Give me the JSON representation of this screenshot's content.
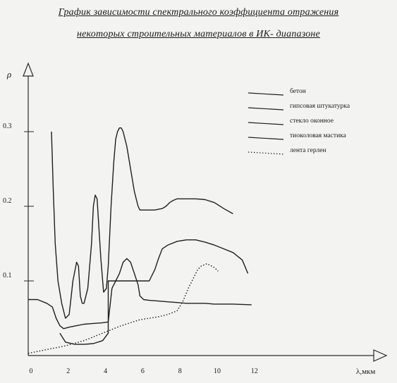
{
  "chart_data": {
    "type": "line",
    "title": "График зависимости спектрального коэффициента отражения",
    "subtitle": "некоторых строительных материалов в ИК- диапазоне",
    "ylabel": "ρ",
    "xlabel": "λ,мкм",
    "xlim": [
      0,
      15.5
    ],
    "ylim": [
      0,
      0.35
    ],
    "x_ticks": [
      "0",
      "2",
      "4",
      "6",
      "8",
      "10",
      "12"
    ],
    "y_ticks": [
      "0.1",
      "0.2",
      "0.3"
    ],
    "grid": false,
    "legend_position": "top-right",
    "series": [
      {
        "name": "бетон",
        "style": "solid",
        "x": [
          1.25,
          1.35,
          1.45,
          1.6,
          1.8,
          2.0,
          2.2,
          2.4,
          2.6,
          2.7,
          2.8,
          2.9,
          3.0,
          3.2,
          3.4,
          3.5,
          3.6,
          3.7,
          3.9,
          4.05,
          4.2,
          4.3,
          4.45,
          4.6,
          4.7,
          4.8,
          4.9,
          5.0,
          5.1,
          5.3,
          5.5,
          5.7,
          5.9,
          6.0,
          6.1,
          6.2,
          6.4,
          6.6,
          6.8,
          7.0,
          7.2,
          7.4,
          7.6,
          7.8,
          8.0,
          8.5,
          9.0,
          9.5,
          10.0,
          10.5,
          11.0
        ],
        "y": [
          0.3,
          0.22,
          0.15,
          0.1,
          0.07,
          0.05,
          0.055,
          0.1,
          0.125,
          0.12,
          0.08,
          0.07,
          0.07,
          0.09,
          0.15,
          0.2,
          0.215,
          0.21,
          0.13,
          0.085,
          0.09,
          0.12,
          0.2,
          0.26,
          0.29,
          0.3,
          0.305,
          0.305,
          0.3,
          0.28,
          0.25,
          0.22,
          0.2,
          0.195,
          0.195,
          0.195,
          0.195,
          0.195,
          0.195,
          0.196,
          0.197,
          0.2,
          0.205,
          0.208,
          0.21,
          0.21,
          0.21,
          0.209,
          0.205,
          0.197,
          0.19
        ]
      },
      {
        "name": "гипсовая штукатурка",
        "style": "solid",
        "x": [
          0.0,
          0.5,
          1.0,
          1.3,
          1.5,
          1.7,
          1.9,
          2.2,
          2.6,
          3.0,
          3.5,
          4.0,
          4.3
        ],
        "y": [
          0.075,
          0.075,
          0.07,
          0.065,
          0.05,
          0.04,
          0.036,
          0.038,
          0.04,
          0.042,
          0.043,
          0.044,
          0.045
        ]
      },
      {
        "name": "стекло оконное",
        "style": "solid",
        "x": [
          4.3,
          4.5,
          4.7,
          4.9,
          5.1,
          5.3,
          5.5,
          5.7,
          5.9,
          6.0,
          6.2,
          6.5,
          7.0,
          7.5,
          8.0,
          8.5,
          9.0,
          9.5,
          10.0,
          10.5,
          11.0,
          12.0
        ],
        "y": [
          0.045,
          0.09,
          0.1,
          0.11,
          0.125,
          0.13,
          0.125,
          0.11,
          0.095,
          0.08,
          0.075,
          0.074,
          0.073,
          0.072,
          0.071,
          0.07,
          0.07,
          0.07,
          0.069,
          0.069,
          0.069,
          0.068
        ]
      },
      {
        "name": "тиоколовая мастика",
        "style": "solid",
        "x": [
          1.7,
          2.0,
          2.5,
          3.0,
          3.5,
          4.0,
          4.3,
          4.3,
          4.6,
          5.0,
          5.5,
          6.0,
          6.5,
          6.8,
          7.0,
          7.2,
          7.5,
          8.0,
          8.5,
          9.0,
          9.5,
          10.0,
          10.5,
          11.0,
          11.5,
          11.8
        ],
        "y": [
          0.03,
          0.018,
          0.015,
          0.015,
          0.016,
          0.02,
          0.03,
          0.1,
          0.1,
          0.1,
          0.1,
          0.1,
          0.1,
          0.115,
          0.13,
          0.143,
          0.148,
          0.153,
          0.155,
          0.155,
          0.152,
          0.148,
          0.143,
          0.138,
          0.128,
          0.11
        ]
      },
      {
        "name": "лента герлен",
        "style": "dotted",
        "x": [
          0.0,
          1.0,
          2.0,
          3.0,
          4.0,
          5.0,
          6.0,
          6.5,
          7.0,
          7.5,
          8.0,
          8.3,
          8.6,
          8.9,
          9.1,
          9.3,
          9.6,
          10.0,
          10.2
        ],
        "y": [
          0.003,
          0.008,
          0.013,
          0.02,
          0.03,
          0.04,
          0.048,
          0.05,
          0.052,
          0.055,
          0.06,
          0.072,
          0.09,
          0.105,
          0.115,
          0.12,
          0.123,
          0.118,
          0.113
        ]
      }
    ]
  }
}
